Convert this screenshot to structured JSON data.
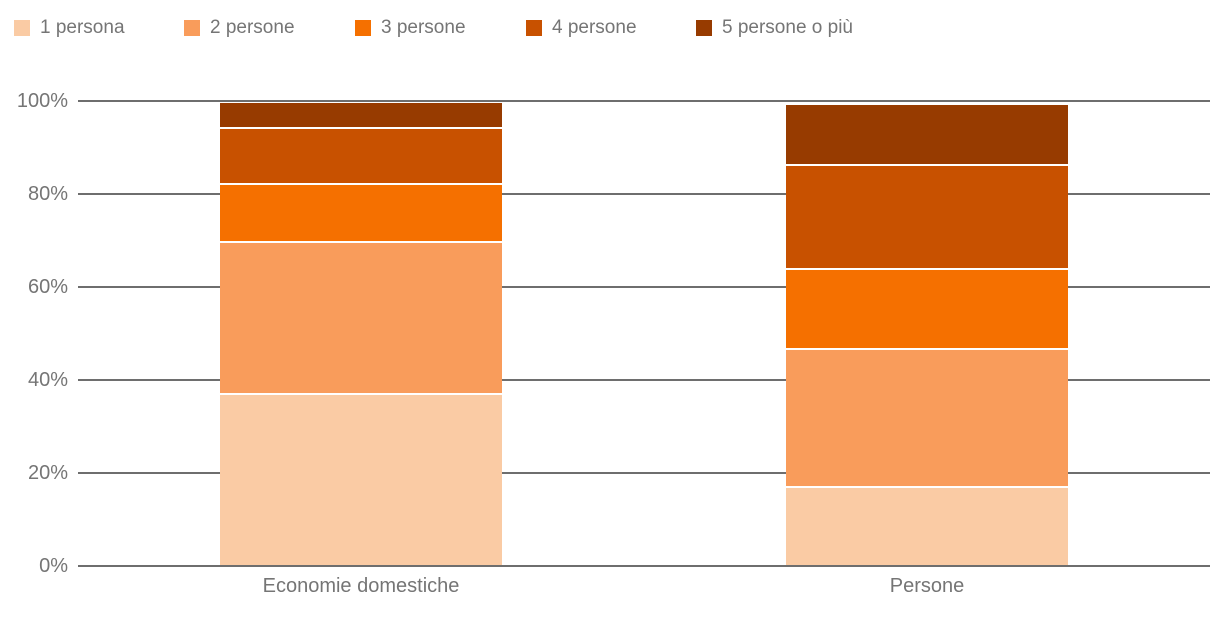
{
  "chart_data": {
    "type": "bar",
    "stacked": true,
    "orientation": "vertical",
    "unit": "%",
    "title": "",
    "categories": [
      "Economie domestiche",
      "Persone"
    ],
    "series": [
      {
        "name": "1 persona",
        "color": "#FACBA4",
        "values": [
          37.3,
          17.3
        ]
      },
      {
        "name": "2 persone",
        "color": "#F99C5B",
        "values": [
          32.5,
          29.6
        ]
      },
      {
        "name": "3 persone",
        "color": "#F57000",
        "values": [
          12.5,
          17.2
        ]
      },
      {
        "name": "4 persone",
        "color": "#C85100",
        "values": [
          12.2,
          22.3
        ]
      },
      {
        "name": "5 persone o più",
        "color": "#973B00",
        "values": [
          5.5,
          13.1
        ]
      }
    ],
    "y_axis": {
      "tick_labels": [
        "0%",
        "20%",
        "40%",
        "60%",
        "80%",
        "100%"
      ],
      "min": 0,
      "max": 100,
      "grid": true
    },
    "legend_position": "top",
    "background_color": "#FFFFFF",
    "grid_color": "#6E6E6E",
    "axis_color": "#6E6E6E",
    "text_color": "#757575"
  }
}
